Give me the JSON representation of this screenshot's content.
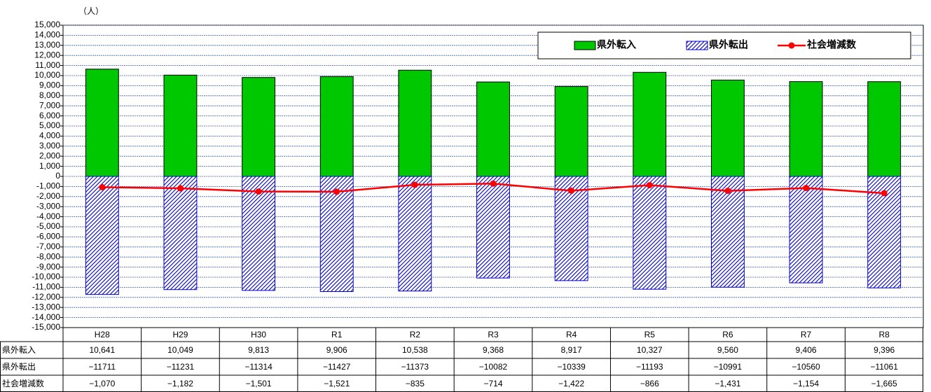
{
  "chart_data": {
    "type": "bar_line",
    "unit_label": "（人）",
    "categories": [
      "H28",
      "H29",
      "H30",
      "R1",
      "R2",
      "R3",
      "R4",
      "R5",
      "R6",
      "R7",
      "R8"
    ],
    "series": [
      {
        "name": "県外転入",
        "color": "#00c800",
        "style": "solid",
        "values": [
          10641,
          10049,
          9813,
          9906,
          10538,
          9368,
          8917,
          10327,
          9560,
          9406,
          9396
        ],
        "value_labels": [
          "10,641",
          "10,049",
          "9,813",
          "9,906",
          "10,538",
          "9,368",
          "8,917",
          "10,327",
          "9,560",
          "9,406",
          "9,396"
        ]
      },
      {
        "name": "県外転出",
        "color": "#0000c8",
        "style": "hatch",
        "values": [
          -11711,
          -11231,
          -11314,
          -11427,
          -11373,
          -10082,
          -10339,
          -11193,
          -10991,
          -10560,
          -11061
        ],
        "value_labels": [
          "−11711",
          "−11231",
          "−11314",
          "−11427",
          "−11373",
          "−10082",
          "−10339",
          "−11193",
          "−10991",
          "−10560",
          "−11061"
        ]
      },
      {
        "name": "社会増減数",
        "color": "#ff0000",
        "style": "line",
        "values": [
          -1070,
          -1182,
          -1501,
          -1521,
          -835,
          -714,
          -1422,
          -866,
          -1431,
          -1154,
          -1665
        ],
        "value_labels": [
          "−1,070",
          "−1,182",
          "−1,501",
          "−1,521",
          "−835",
          "−714",
          "−1,422",
          "−866",
          "−1,431",
          "−1,154",
          "−1,665"
        ]
      }
    ],
    "ylim": [
      -15000,
      15000
    ],
    "yticks": [
      {
        "value": 15000,
        "label": "15,000"
      },
      {
        "value": 14000,
        "label": "14,000"
      },
      {
        "value": 13000,
        "label": "13,000"
      },
      {
        "value": 12000,
        "label": "12,000"
      },
      {
        "value": 11000,
        "label": "11,000"
      },
      {
        "value": 10000,
        "label": "10,000"
      },
      {
        "value": 9000,
        "label": "9,000"
      },
      {
        "value": 8000,
        "label": "8,000"
      },
      {
        "value": 7000,
        "label": "7,000"
      },
      {
        "value": 6000,
        "label": "6,000"
      },
      {
        "value": 5000,
        "label": "5,000"
      },
      {
        "value": 4000,
        "label": "4,000"
      },
      {
        "value": 3000,
        "label": "3,000"
      },
      {
        "value": 2000,
        "label": "2,000"
      },
      {
        "value": 1000,
        "label": "1,000"
      },
      0,
      {
        "value": -1000,
        "label": "-1,000"
      },
      {
        "value": -2000,
        "label": "-2,000"
      },
      {
        "value": -3000,
        "label": "-3,000"
      },
      {
        "value": -4000,
        "label": "-4,000"
      },
      {
        "value": -5000,
        "label": "-5,000"
      },
      {
        "value": -6000,
        "label": "-6,000"
      },
      {
        "value": -7000,
        "label": "-7,000"
      },
      {
        "value": -8000,
        "label": "-8,000"
      },
      {
        "value": -9000,
        "label": "-9,000"
      },
      {
        "value": -10000,
        "label": "-10,000"
      },
      {
        "value": -11000,
        "label": "-11,000"
      },
      {
        "value": -12000,
        "label": "-12,000"
      },
      {
        "value": -13000,
        "label": "-13,000"
      },
      {
        "value": -14000,
        "label": "-14,000"
      },
      {
        "value": -15000,
        "label": "-15,000"
      }
    ],
    "grid": true,
    "legend": "top-right"
  }
}
